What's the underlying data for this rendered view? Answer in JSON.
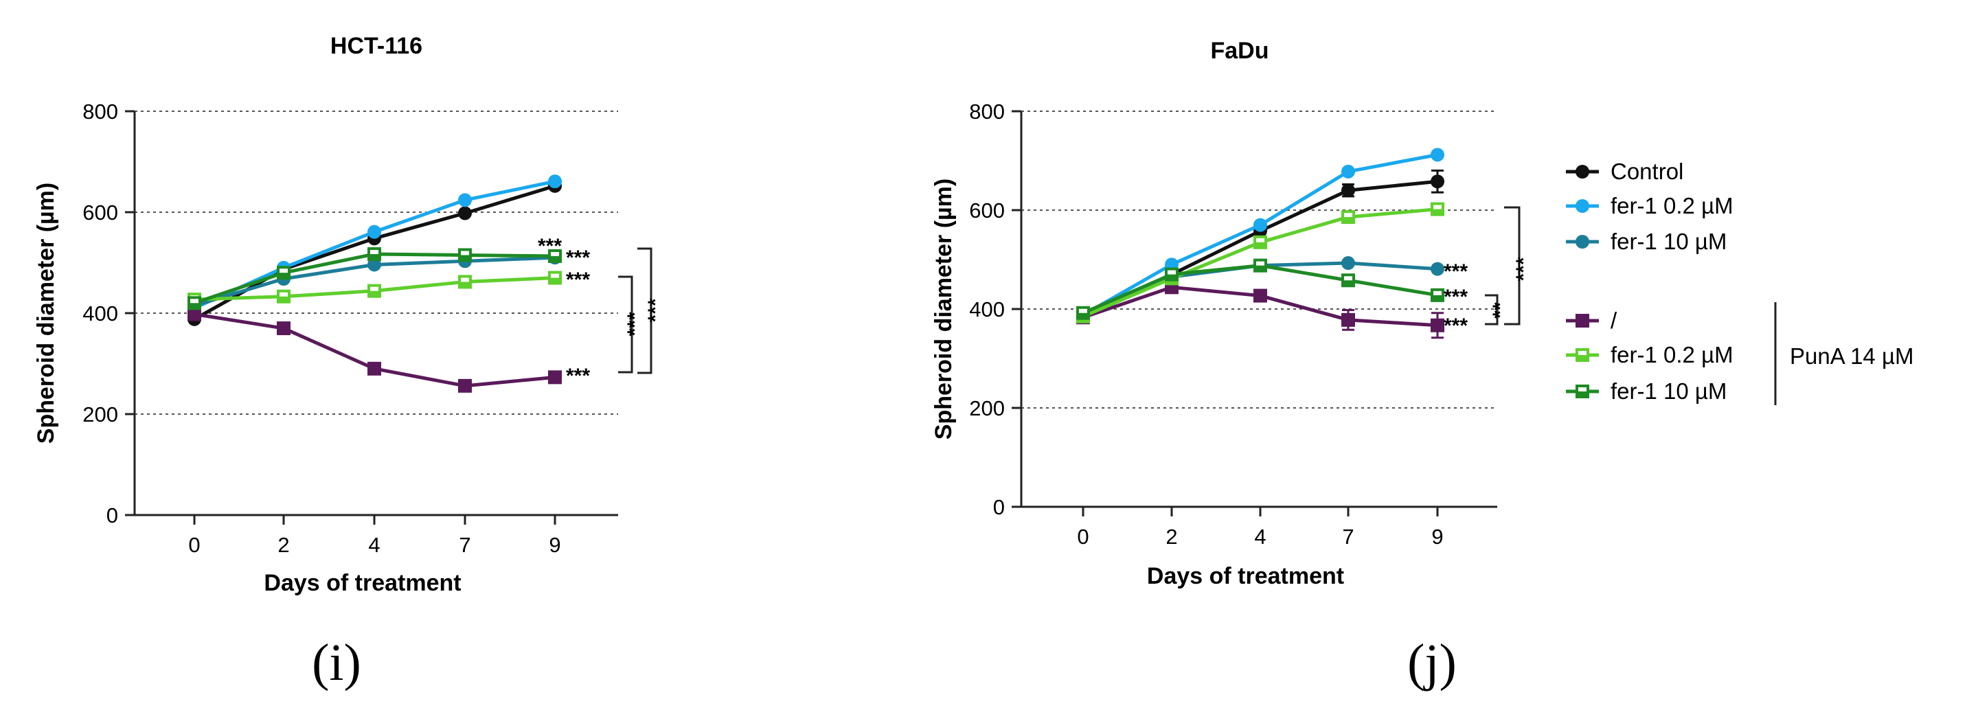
{
  "chart_data": [
    {
      "type": "line",
      "panel_label": "(i)",
      "title": "HCT-116",
      "xlabel": "Days of treatment",
      "ylabel": "Spheroid diameter (µm)",
      "x": [
        0,
        2,
        4,
        7,
        9
      ],
      "x_ticks": [
        "0",
        "2",
        "4",
        "7",
        "9"
      ],
      "y_ticks": [
        "0",
        "200",
        "400",
        "600",
        "800"
      ],
      "ylim": [
        0,
        800
      ],
      "grid": "horizontal dotted",
      "series": [
        {
          "name": "Control",
          "color": "#111111",
          "marker": "circle",
          "values": [
            388,
            487,
            548,
            598,
            652
          ]
        },
        {
          "name": "fer-1 0.2 µM",
          "color": "#1aa8ee",
          "marker": "circle",
          "values": [
            410,
            490,
            561,
            624,
            661
          ]
        },
        {
          "name": "fer-1 10 µM",
          "color": "#1c7d98",
          "marker": "circle",
          "values": [
            415,
            468,
            496,
            503,
            510
          ]
        },
        {
          "name": "/ + PunA 14 µM",
          "color": "#5a1a5a",
          "marker": "square",
          "values": [
            398,
            370,
            290,
            256,
            273
          ]
        },
        {
          "name": "fer-1 0.2 µM + PunA 14 µM",
          "color": "#5fcf2c",
          "marker": "half-square",
          "values": [
            427,
            433,
            444,
            462,
            470
          ]
        },
        {
          "name": "fer-1 10 µM + PunA 14 µM",
          "color": "#1e8a24",
          "marker": "half-square",
          "values": [
            420,
            480,
            517,
            515,
            513
          ]
        }
      ],
      "annotations": {
        "endpoint_stars": [
          "***",
          "***",
          "***",
          "***"
        ],
        "bracket_inner": "***",
        "bracket_outer": "***"
      }
    },
    {
      "type": "line",
      "panel_label": "(j)",
      "title": "FaDu",
      "xlabel": "Days of treatment",
      "ylabel": "Spheroid diameter (µm)",
      "x": [
        0,
        2,
        4,
        7,
        9
      ],
      "x_ticks": [
        "0",
        "2",
        "4",
        "7",
        "9"
      ],
      "y_ticks": [
        "0",
        "200",
        "400",
        "600",
        "800"
      ],
      "ylim": [
        0,
        800
      ],
      "grid": "horizontal dotted",
      "series": [
        {
          "name": "Control",
          "color": "#111111",
          "marker": "circle",
          "values": [
            388,
            470,
            558,
            640,
            658
          ],
          "errors": [
            0,
            0,
            0,
            12,
            22
          ]
        },
        {
          "name": "fer-1 0.2 µM",
          "color": "#1aa8ee",
          "marker": "circle",
          "values": [
            388,
            490,
            570,
            678,
            712
          ]
        },
        {
          "name": "fer-1 10 µM",
          "color": "#1c7d98",
          "marker": "circle",
          "values": [
            390,
            465,
            488,
            493,
            481
          ]
        },
        {
          "name": "/ + PunA 14 µM",
          "color": "#5a1a5a",
          "marker": "square",
          "values": [
            383,
            444,
            427,
            378,
            367
          ],
          "errors": [
            0,
            0,
            0,
            20,
            25
          ]
        },
        {
          "name": "fer-1 0.2 µM + PunA 14 µM",
          "color": "#5fcf2c",
          "marker": "half-square",
          "values": [
            385,
            462,
            535,
            586,
            602
          ]
        },
        {
          "name": "fer-1 10 µM + PunA 14 µM",
          "color": "#1e8a24",
          "marker": "half-square",
          "values": [
            392,
            470,
            488,
            458,
            428
          ]
        }
      ],
      "annotations": {
        "endpoint_stars": [
          "***",
          "***",
          "***"
        ],
        "bracket_inner": "**",
        "bracket_outer": "***"
      }
    }
  ],
  "legend": {
    "items": [
      {
        "label": "Control",
        "color": "#111111",
        "marker": "circle"
      },
      {
        "label": "fer-1 0.2 µM",
        "color": "#1aa8ee",
        "marker": "circle"
      },
      {
        "label": "fer-1 10 µM",
        "color": "#1c7d98",
        "marker": "circle"
      },
      {
        "label": "/",
        "color": "#5a1a5a",
        "marker": "square"
      },
      {
        "label": "fer-1 0.2 µM",
        "color": "#5fcf2c",
        "marker": "half-square"
      },
      {
        "label": "fer-1 10 µM",
        "color": "#1e8a24",
        "marker": "half-square"
      }
    ],
    "group_label": "PunA 14 µM"
  }
}
